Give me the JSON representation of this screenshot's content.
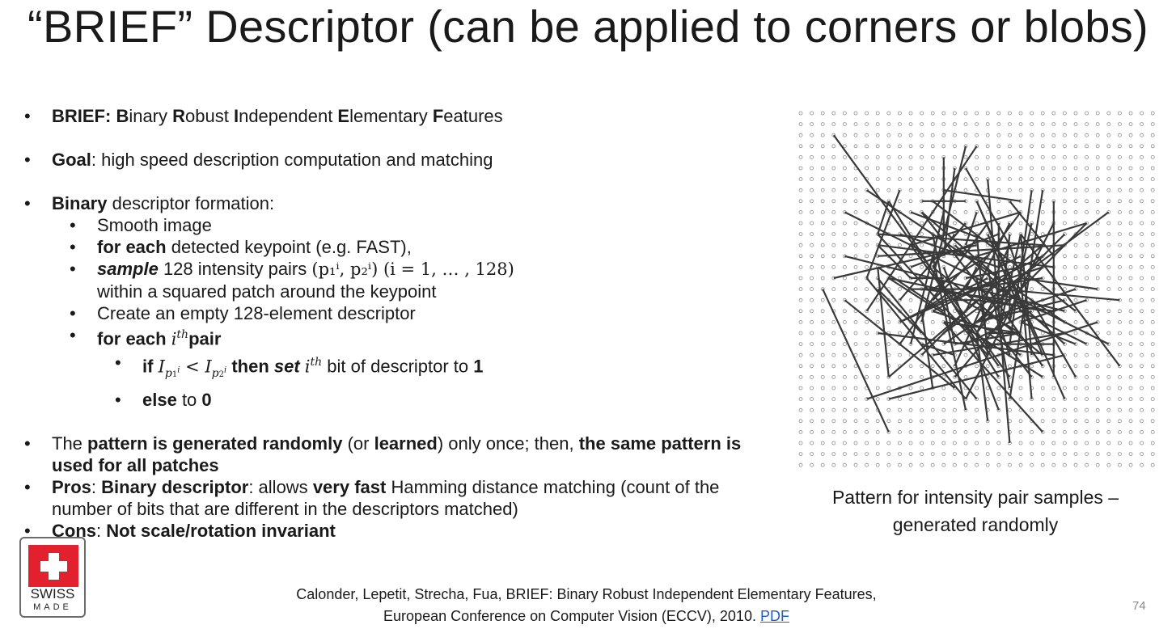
{
  "title": "“BRIEF” Descriptor (can be applied to corners or blobs)",
  "bullets": {
    "b1": {
      "bold": "BRIEF: B",
      "t1": "inary ",
      "b2": "R",
      "t2": "obust ",
      "b3": "I",
      "t3": "ndependent ",
      "b4": "E",
      "t4": "lementary ",
      "b5": "F",
      "t5": "eatures"
    },
    "b2": {
      "bold": "Goal",
      "text": ": high speed description computation and matching"
    },
    "b3": {
      "bold": "Binary",
      "text": " descriptor formation:",
      "sub1": "Smooth image",
      "sub2_bold": "for each",
      "sub2_text": " detected keypoint (e.g. FAST),",
      "sub3_bold": "sample",
      "sub3_text": " 128 intensity pairs ",
      "sub3_pairs": "(p₁ⁱ, p₂ⁱ) (i = 1, … , 128)",
      "sub3_line2": "within a squared patch around the keypoint",
      "sub4": "Create an empty 128-element descriptor",
      "sub5_bold": "for each ",
      "sub5_math": "i",
      "sub5_sup": "th",
      "sub5_bold2": "pair",
      "s1_if": "if ",
      "s1_cond": "I",
      "s1_then": " then ",
      "s1_set": "set ",
      "s1_math": "i",
      "s1_sup": "th",
      "s1_text": " bit of descriptor to ",
      "s1_one": "1",
      "s2_else": "else",
      "s2_text": " to ",
      "s2_zero": "0"
    },
    "b4": {
      "t1": "The ",
      "bold1": "pattern is generated randomly",
      "t2": " (or ",
      "bold2": "learned",
      "t3": ") only once; then, ",
      "bold3": "the same pattern is used for all patches"
    },
    "b5": {
      "bold1": "Pros",
      "t1": ": ",
      "bold2": "Binary descriptor",
      "t2": ": allows ",
      "bold3": "very fast",
      "t3": " Hamming distance matching (count of the number of bits that are different in the descriptors matched)"
    },
    "b6": {
      "bold1": "Cons",
      "t1": ": ",
      "bold2": "Not scale/rotation invariant"
    }
  },
  "figure_caption": "Pattern for intensity pair samples – generated randomly",
  "logo": {
    "line1": "SWISS",
    "line2": "MADE",
    "flag_color": "#e3202e"
  },
  "citation": {
    "line1": "Calonder, Lepetit, Strecha, Fua, BRIEF: Binary Robust Independent Elementary Features,",
    "line2": "European Conference on Computer Vision (ECCV), 2010. ",
    "link": "PDF"
  },
  "page_number": "74"
}
